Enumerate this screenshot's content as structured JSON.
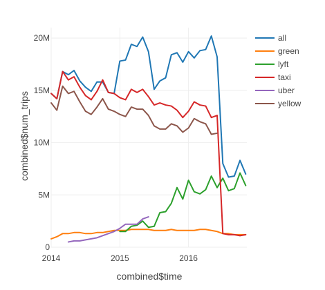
{
  "chart_data": {
    "type": "line",
    "xlabel": "combined$time",
    "ylabel": "combined$num_trips",
    "x_range": [
      2014.0,
      2016.85
    ],
    "ylim": [
      0,
      21000000
    ],
    "x_ticks": [
      {
        "value": 2014,
        "label": "2014"
      },
      {
        "value": 2015,
        "label": "2015"
      },
      {
        "value": 2016,
        "label": "2016"
      }
    ],
    "y_ticks": [
      {
        "value": 0,
        "label": "0"
      },
      {
        "value": 5000000,
        "label": "5M"
      },
      {
        "value": 10000000,
        "label": "10M"
      },
      {
        "value": 15000000,
        "label": "15M"
      },
      {
        "value": 20000000,
        "label": "20M"
      }
    ],
    "grid": true,
    "legend_position": "right",
    "series": [
      {
        "name": "all",
        "color": "#1f77b4",
        "x": [
          2014.0,
          2014.083,
          2014.167,
          2014.25,
          2014.333,
          2014.417,
          2014.5,
          2014.583,
          2014.667,
          2014.75,
          2014.833,
          2014.917,
          2015.0,
          2015.083,
          2015.167,
          2015.25,
          2015.333,
          2015.417,
          2015.5,
          2015.583,
          2015.667,
          2015.75,
          2015.833,
          2015.917,
          2016.0,
          2016.083,
          2016.167,
          2016.25,
          2016.333,
          2016.417,
          2016.5,
          2016.583,
          2016.667,
          2016.75,
          2016.833
        ],
        "y": [
          14700000,
          14200000,
          16800000,
          16500000,
          16900000,
          15900000,
          15300000,
          14900000,
          15800000,
          15800000,
          14800000,
          14700000,
          17800000,
          17900000,
          19400000,
          19200000,
          20100000,
          18700000,
          15100000,
          15900000,
          16200000,
          18400000,
          18600000,
          17700000,
          18700000,
          18100000,
          18800000,
          18900000,
          20200000,
          18200000,
          8000000,
          6700000,
          6800000,
          8300000,
          7000000
        ]
      },
      {
        "name": "green",
        "color": "#ff7f0e",
        "x": [
          2014.0,
          2014.083,
          2014.167,
          2014.25,
          2014.333,
          2014.417,
          2014.5,
          2014.583,
          2014.667,
          2014.75,
          2014.833,
          2014.917,
          2015.0,
          2015.083,
          2015.167,
          2015.25,
          2015.333,
          2015.417,
          2015.5,
          2015.583,
          2015.667,
          2015.75,
          2015.833,
          2015.917,
          2016.0,
          2016.083,
          2016.167,
          2016.25,
          2016.333,
          2016.417,
          2016.5,
          2016.583,
          2016.667,
          2016.75,
          2016.833
        ],
        "y": [
          800000,
          1000000,
          1300000,
          1300000,
          1400000,
          1400000,
          1300000,
          1300000,
          1400000,
          1400000,
          1500000,
          1600000,
          1600000,
          1600000,
          1700000,
          1700000,
          1700000,
          1700000,
          1600000,
          1600000,
          1600000,
          1700000,
          1600000,
          1600000,
          1600000,
          1600000,
          1700000,
          1700000,
          1600000,
          1500000,
          1300000,
          1300000,
          1200000,
          1200000,
          1200000
        ]
      },
      {
        "name": "lyft",
        "color": "#2ca02c",
        "x": [
          2015.0,
          2015.083,
          2015.167,
          2015.25,
          2015.333,
          2015.417,
          2015.5,
          2015.583,
          2015.667,
          2015.75,
          2015.833,
          2015.917,
          2016.0,
          2016.083,
          2016.167,
          2016.25,
          2016.333,
          2016.417,
          2016.5,
          2016.583,
          2016.667,
          2016.75,
          2016.833
        ],
        "y": [
          1500000,
          1500000,
          2000000,
          2100000,
          2500000,
          1900000,
          2000000,
          3300000,
          3400000,
          4200000,
          5700000,
          4600000,
          6400000,
          5300000,
          5100000,
          5500000,
          6800000,
          5700000,
          6600000,
          5400000,
          5600000,
          7100000,
          5900000
        ]
      },
      {
        "name": "taxi",
        "color": "#d62728",
        "x": [
          2014.0,
          2014.083,
          2014.167,
          2014.25,
          2014.333,
          2014.417,
          2014.5,
          2014.583,
          2014.667,
          2014.75,
          2014.833,
          2014.917,
          2015.0,
          2015.083,
          2015.167,
          2015.25,
          2015.333,
          2015.417,
          2015.5,
          2015.583,
          2015.667,
          2015.75,
          2015.833,
          2015.917,
          2016.0,
          2016.083,
          2016.167,
          2016.25,
          2016.333,
          2016.417,
          2016.5,
          2016.583,
          2016.667,
          2016.75,
          2016.833
        ],
        "y": [
          14700000,
          14200000,
          16800000,
          16000000,
          16300000,
          15300000,
          14500000,
          14100000,
          14900000,
          16000000,
          14800000,
          14700000,
          14300000,
          14100000,
          15100000,
          14800000,
          15100000,
          14400000,
          13600000,
          13800000,
          13600000,
          13500000,
          13100000,
          12400000,
          13000000,
          13900000,
          13600000,
          13500000,
          12400000,
          12600000,
          1300000,
          1200000,
          1200000,
          1100000,
          1200000
        ]
      },
      {
        "name": "uber",
        "color": "#9467bd",
        "x": [
          2014.25,
          2014.333,
          2014.417,
          2014.5,
          2014.583,
          2014.667,
          2014.75,
          2014.833,
          2014.917,
          2015.0,
          2015.083,
          2015.167,
          2015.25,
          2015.333,
          2015.417
        ],
        "y": [
          500000,
          600000,
          600000,
          700000,
          800000,
          900000,
          1100000,
          1300000,
          1500000,
          1800000,
          2200000,
          2200000,
          2200000,
          2700000,
          2900000
        ]
      },
      {
        "name": "yellow",
        "color": "#8c564b",
        "x": [
          2014.0,
          2014.083,
          2014.167,
          2014.25,
          2014.333,
          2014.417,
          2014.5,
          2014.583,
          2014.667,
          2014.75,
          2014.833,
          2014.917,
          2015.0,
          2015.083,
          2015.167,
          2015.25,
          2015.333,
          2015.417,
          2015.5,
          2015.583,
          2015.667,
          2015.75,
          2015.833,
          2015.917,
          2016.0,
          2016.083,
          2016.167,
          2016.25,
          2016.333,
          2016.417
        ],
        "y": [
          13800000,
          13100000,
          15400000,
          14700000,
          14900000,
          13900000,
          13000000,
          12700000,
          13400000,
          14200000,
          13200000,
          13000000,
          12700000,
          12500000,
          13400000,
          13200000,
          13200000,
          12600000,
          11600000,
          11300000,
          11300000,
          11800000,
          11600000,
          11000000,
          11400000,
          12300000,
          12000000,
          11800000,
          10800000,
          10900000
        ]
      }
    ]
  }
}
